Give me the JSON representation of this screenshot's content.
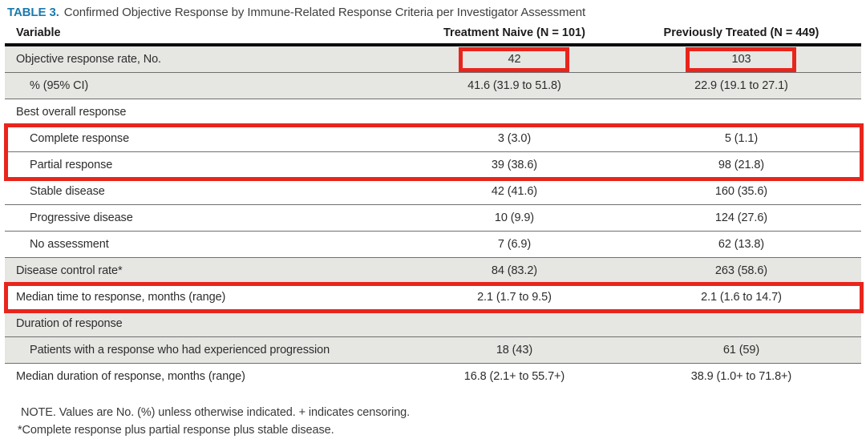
{
  "title": {
    "label": "TABLE 3.",
    "text": "Confirmed Objective Response by Immune-Related Response Criteria per Investigator Assessment"
  },
  "table": {
    "columns": [
      "Variable",
      "Treatment Naive (N = 101)",
      "Previously Treated (N = 449)"
    ],
    "rows": [
      {
        "variable": "Objective response rate, No.",
        "naive": "42",
        "treated": "103",
        "shaded": true,
        "indent": false,
        "value_box": true,
        "red_box": false
      },
      {
        "variable": "% (95% CI)",
        "naive": "41.6 (31.9 to 51.8)",
        "treated": "22.9 (19.1 to 27.1)",
        "shaded": true,
        "indent": true,
        "value_box": false,
        "red_box": false
      },
      {
        "variable": "Best overall response",
        "naive": "",
        "treated": "",
        "shaded": false,
        "indent": false,
        "value_box": false,
        "red_box": false
      },
      {
        "variable": "Complete response",
        "naive": "3 (3.0)",
        "treated": "5 (1.1)",
        "shaded": false,
        "indent": true,
        "value_box": false,
        "red_box": true
      },
      {
        "variable": "Partial response",
        "naive": "39 (38.6)",
        "treated": "98 (21.8)",
        "shaded": false,
        "indent": true,
        "value_box": false,
        "red_box": true
      },
      {
        "variable": "Stable disease",
        "naive": "42 (41.6)",
        "treated": "160 (35.6)",
        "shaded": false,
        "indent": true,
        "value_box": false,
        "red_box": false
      },
      {
        "variable": "Progressive disease",
        "naive": "10 (9.9)",
        "treated": "124 (27.6)",
        "shaded": false,
        "indent": true,
        "value_box": false,
        "red_box": false
      },
      {
        "variable": "No assessment",
        "naive": "7 (6.9)",
        "treated": "62 (13.8)",
        "shaded": false,
        "indent": true,
        "value_box": false,
        "red_box": false
      },
      {
        "variable": "Disease control rate*",
        "naive": "84 (83.2)",
        "treated": "263 (58.6)",
        "shaded": true,
        "indent": false,
        "value_box": false,
        "red_box": false
      },
      {
        "variable": "Median time to response, months (range)",
        "naive": "2.1 (1.7 to 9.5)",
        "treated": "2.1 (1.6 to 14.7)",
        "shaded": false,
        "indent": false,
        "value_box": false,
        "red_box": true
      },
      {
        "variable": "Duration of response",
        "naive": "",
        "treated": "",
        "shaded": true,
        "indent": false,
        "value_box": false,
        "red_box": false
      },
      {
        "variable": "Patients with a response who had experienced progression",
        "naive": "18 (43)",
        "treated": "61 (59)",
        "shaded": true,
        "indent": true,
        "value_box": false,
        "red_box": false
      },
      {
        "variable": "Median duration of response, months (range)",
        "naive": "16.8 (2.1+ to 55.7+)",
        "treated": "38.9 (1.0+ to 71.8+)",
        "shaded": false,
        "indent": false,
        "value_box": false,
        "red_box": false
      }
    ]
  },
  "notes": [
    "NOTE. Values are No. (%) unless otherwise indicated. + indicates censoring.",
    "*Complete response plus partial response plus stable disease."
  ],
  "colors": {
    "accent_title": "#1a7aad",
    "annotation_red": "#e8251c",
    "row_shade": "#e6e6e3"
  }
}
